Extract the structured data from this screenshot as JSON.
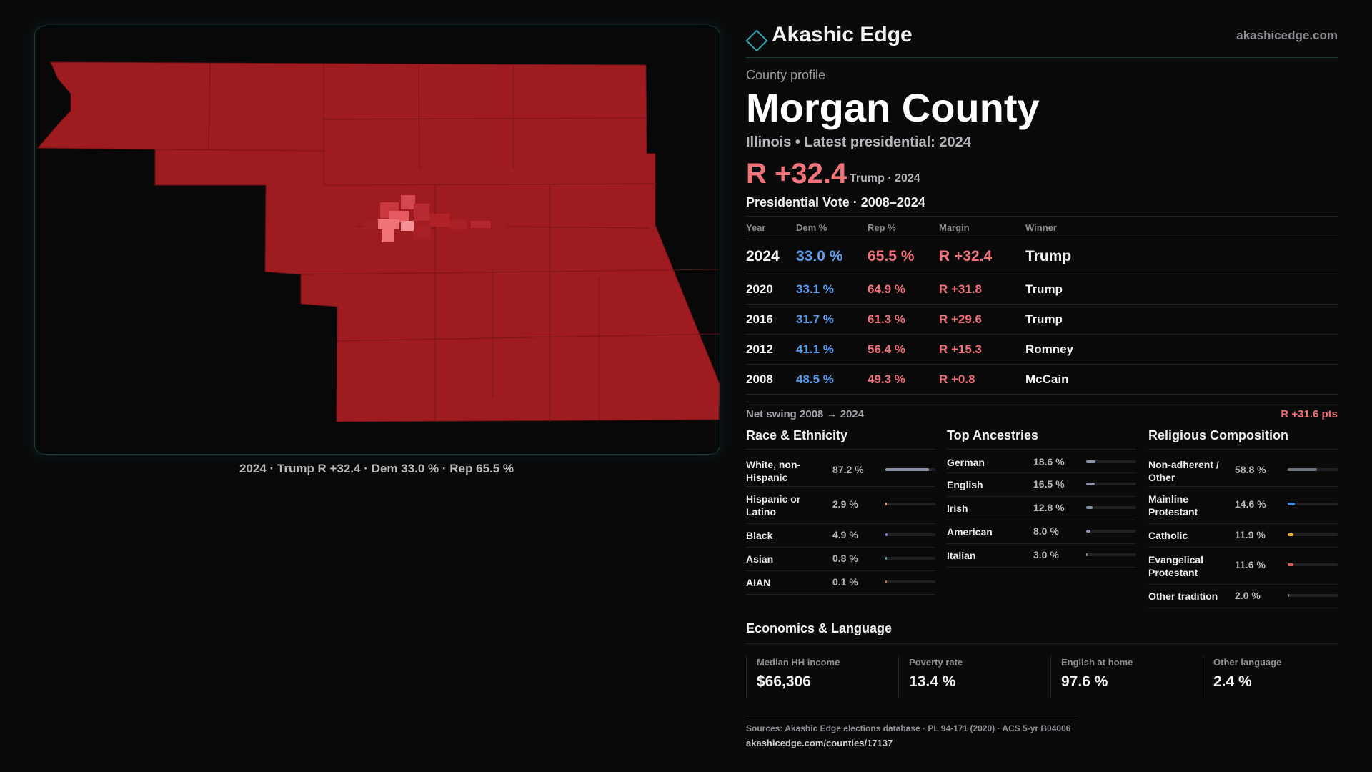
{
  "brand": {
    "name": "Akashic Edge",
    "url": "akashicedge.com",
    "accent": "#2aa6b0"
  },
  "profile": {
    "kicker": "County profile",
    "title": "Morgan County",
    "subtitle": "Illinois • Latest presidential: 2024",
    "headline_margin": "R +32.4",
    "headline_note": "Trump · 2024"
  },
  "map": {
    "caption": "2024 · Trump R +32.4 · Dem 33.0 % · Rep 65.5 %",
    "fill_color": "#9e1b1f",
    "precinct_light_color": "#f0737a"
  },
  "vote": {
    "title": "Presidential Vote · 2008–2024",
    "headers": {
      "year": "Year",
      "dem": "Dem %",
      "rep": "Rep %",
      "margin": "Margin",
      "winner": "Winner"
    },
    "rows": [
      {
        "year": "2024",
        "dem": "33.0 %",
        "rep": "65.5 %",
        "margin": "R +32.4",
        "winner": "Trump"
      },
      {
        "year": "2020",
        "dem": "33.1 %",
        "rep": "64.9 %",
        "margin": "R +31.8",
        "winner": "Trump"
      },
      {
        "year": "2016",
        "dem": "31.7 %",
        "rep": "61.3 %",
        "margin": "R +29.6",
        "winner": "Trump"
      },
      {
        "year": "2012",
        "dem": "41.1 %",
        "rep": "56.4 %",
        "margin": "R +15.3",
        "winner": "Romney"
      },
      {
        "year": "2008",
        "dem": "48.5 %",
        "rep": "49.3 %",
        "margin": "R +0.8",
        "winner": "McCain"
      }
    ],
    "colors": {
      "dem": "#5b9cf0",
      "rep": "#f2727a"
    }
  },
  "swing": {
    "label": "Net swing 2008 → 2024",
    "value": "R +31.6 pts"
  },
  "race": {
    "title": "Race & Ethnicity",
    "items": [
      {
        "label": "White, non-Hispanic",
        "value": "87.2 %",
        "pct": 87.2,
        "color": "#8a94a6"
      },
      {
        "label": "Hispanic or Latino",
        "value": "2.9 %",
        "pct": 2.9,
        "color": "#e0a030"
      },
      {
        "label": "Black",
        "value": "4.9 %",
        "pct": 4.9,
        "color": "#8b7ae0"
      },
      {
        "label": "Asian",
        "value": "0.8 %",
        "pct": 0.8,
        "color": "#40c0c0"
      },
      {
        "label": "AIAN",
        "value": "0.1 %",
        "pct": 0.1,
        "color": "#c08040"
      }
    ]
  },
  "ancestry": {
    "title": "Top Ancestries",
    "items": [
      {
        "label": "German",
        "value": "18.6 %",
        "pct": 18.6,
        "color": "#8a94a6"
      },
      {
        "label": "English",
        "value": "16.5 %",
        "pct": 16.5,
        "color": "#8a94a6"
      },
      {
        "label": "Irish",
        "value": "12.8 %",
        "pct": 12.8,
        "color": "#8a94a6"
      },
      {
        "label": "American",
        "value": "8.0 %",
        "pct": 8.0,
        "color": "#8a94a6"
      },
      {
        "label": "Italian",
        "value": "3.0 %",
        "pct": 3.0,
        "color": "#8a94a6"
      }
    ]
  },
  "religion": {
    "title": "Religious Composition",
    "items": [
      {
        "label": "Non-adherent / Other",
        "value": "58.8 %",
        "pct": 58.8,
        "color": "#6b7280"
      },
      {
        "label": "Mainline Protestant",
        "value": "14.6 %",
        "pct": 14.6,
        "color": "#4a8ae0"
      },
      {
        "label": "Catholic",
        "value": "11.9 %",
        "pct": 11.9,
        "color": "#e0b030"
      },
      {
        "label": "Evangelical Protestant",
        "value": "11.6 %",
        "pct": 11.6,
        "color": "#e05a5a"
      },
      {
        "label": "Other tradition",
        "value": "2.0 %",
        "pct": 2.0,
        "color": "#8a8a90"
      }
    ]
  },
  "economics": {
    "title": "Economics & Language",
    "items": [
      {
        "label": "Median HH income",
        "value": "$66,306"
      },
      {
        "label": "Poverty rate",
        "value": "13.4 %"
      },
      {
        "label": "English at home",
        "value": "97.6 %"
      },
      {
        "label": "Other language",
        "value": "2.4 %"
      }
    ]
  },
  "sources": {
    "text": "Sources: Akashic Edge elections database · PL 94-171 (2020) · ACS 5-yr B04006",
    "link": "akashicedge.com/counties/17137"
  }
}
